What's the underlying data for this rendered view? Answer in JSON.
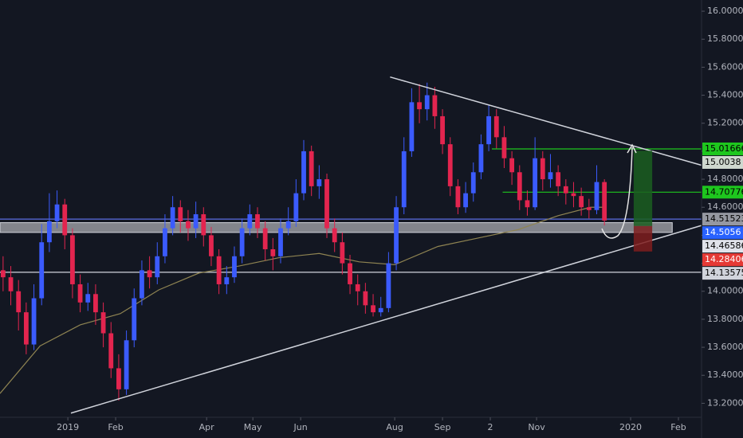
{
  "chart_data": {
    "type": "candlestick",
    "up_color": "#3b5bfd",
    "down_color": "#e3254f",
    "xlim": [
      -44,
      411
    ],
    "xticks": [
      {
        "value": 0,
        "label": "2019"
      },
      {
        "value": 31,
        "label": "Feb"
      },
      {
        "value": 90,
        "label": "Apr"
      },
      {
        "value": 120,
        "label": "May"
      },
      {
        "value": 151,
        "label": "Jun"
      },
      {
        "value": 212,
        "label": "Aug"
      },
      {
        "value": 243,
        "label": "Sep"
      },
      {
        "value": 274,
        "label": "2"
      },
      {
        "value": 304,
        "label": "Nov"
      },
      {
        "value": 365,
        "label": "2020"
      },
      {
        "value": 396,
        "label": "Feb"
      }
    ],
    "ylim": [
      13.1,
      16.08
    ],
    "yticks": [
      {
        "value": 13.2,
        "label": "13.20000"
      },
      {
        "value": 13.4,
        "label": "13.40000"
      },
      {
        "value": 13.6,
        "label": "13.60000"
      },
      {
        "value": 13.8,
        "label": "13.80000"
      },
      {
        "value": 14.0,
        "label": "14.00000"
      },
      {
        "value": 14.2,
        "label": "14.20000"
      },
      {
        "value": 14.4,
        "label": "14.40000"
      },
      {
        "value": 14.6,
        "label": "14.60000"
      },
      {
        "value": 14.8,
        "label": "14.80000"
      },
      {
        "value": 15.0,
        "label": "15.00000"
      },
      {
        "value": 15.2,
        "label": "15.20000"
      },
      {
        "value": 15.4,
        "label": "15.40000"
      },
      {
        "value": 15.6,
        "label": "15.60000"
      },
      {
        "value": 15.8,
        "label": "15.80000"
      },
      {
        "value": 16.0,
        "label": "16.00000"
      }
    ],
    "x": [
      -42,
      -37,
      -32,
      -27,
      -22,
      -17,
      -12,
      -7,
      -2,
      3,
      8,
      13,
      18,
      23,
      28,
      33,
      38,
      43,
      48,
      53,
      58,
      63,
      68,
      73,
      78,
      83,
      88,
      93,
      98,
      103,
      108,
      113,
      118,
      123,
      128,
      133,
      138,
      143,
      148,
      153,
      158,
      163,
      168,
      173,
      178,
      183,
      188,
      193,
      198,
      203,
      208,
      213,
      218,
      223,
      228,
      233,
      238,
      243,
      248,
      253,
      258,
      263,
      268,
      273,
      278,
      283,
      288,
      293,
      298,
      303,
      308,
      313,
      318,
      323,
      328,
      333,
      338,
      343,
      348
    ],
    "open": [
      14.15,
      14.1,
      14.0,
      13.85,
      13.62,
      13.95,
      14.35,
      14.5,
      14.62,
      14.4,
      14.05,
      13.92,
      13.98,
      13.85,
      13.7,
      13.45,
      13.3,
      13.65,
      13.95,
      14.15,
      14.1,
      14.25,
      14.45,
      14.6,
      14.5,
      14.45,
      14.55,
      14.4,
      14.25,
      14.05,
      14.1,
      14.25,
      14.45,
      14.55,
      14.45,
      14.3,
      14.25,
      14.45,
      14.5,
      14.7,
      15.0,
      14.75,
      14.8,
      14.45,
      14.35,
      14.2,
      14.05,
      14.0,
      13.9,
      13.85,
      13.88,
      14.2,
      14.6,
      15.0,
      15.35,
      15.3,
      15.4,
      15.25,
      15.05,
      14.75,
      14.6,
      14.7,
      14.85,
      15.05,
      15.25,
      15.1,
      14.95,
      14.85,
      14.65,
      14.6,
      14.95,
      14.8,
      14.85,
      14.75,
      14.7,
      14.68,
      14.6,
      14.58,
      14.78
    ],
    "high": [
      14.25,
      14.18,
      14.08,
      13.92,
      14.05,
      14.48,
      14.7,
      14.72,
      14.66,
      14.45,
      14.12,
      14.06,
      14.05,
      13.92,
      13.78,
      13.55,
      13.72,
      14.02,
      14.22,
      14.25,
      14.35,
      14.55,
      14.68,
      14.65,
      14.58,
      14.64,
      14.6,
      14.46,
      14.3,
      14.18,
      14.32,
      14.52,
      14.62,
      14.6,
      14.5,
      14.38,
      14.52,
      14.6,
      14.8,
      15.08,
      15.04,
      14.9,
      14.84,
      14.52,
      14.42,
      14.26,
      14.12,
      14.06,
      13.98,
      13.96,
      14.28,
      14.68,
      15.1,
      15.45,
      15.48,
      15.49,
      15.46,
      15.3,
      15.1,
      14.8,
      14.78,
      14.92,
      15.12,
      15.33,
      15.3,
      15.18,
      15.0,
      14.9,
      14.72,
      15.1,
      15.0,
      14.98,
      14.9,
      14.8,
      14.78,
      14.74,
      14.66,
      14.9,
      14.8
    ],
    "low": [
      14.0,
      13.9,
      13.72,
      13.55,
      13.58,
      13.9,
      14.28,
      14.45,
      14.3,
      13.95,
      13.85,
      13.86,
      13.76,
      13.6,
      13.38,
      13.22,
      13.26,
      13.6,
      13.9,
      14.02,
      14.05,
      14.2,
      14.4,
      14.42,
      14.36,
      14.38,
      14.32,
      14.18,
      13.98,
      13.98,
      14.06,
      14.2,
      14.4,
      14.38,
      14.22,
      14.15,
      14.2,
      14.4,
      14.46,
      14.65,
      14.68,
      14.66,
      14.38,
      14.28,
      14.12,
      13.98,
      13.9,
      13.84,
      13.82,
      13.82,
      13.85,
      14.15,
      14.55,
      14.96,
      15.2,
      15.22,
      15.16,
      14.98,
      14.68,
      14.55,
      14.56,
      14.64,
      14.8,
      15.0,
      15.02,
      14.88,
      14.76,
      14.58,
      14.54,
      14.58,
      14.72,
      14.74,
      14.68,
      14.62,
      14.6,
      14.54,
      14.52,
      14.55,
      14.47
    ],
    "close": [
      14.1,
      14.0,
      13.85,
      13.62,
      13.95,
      14.35,
      14.5,
      14.62,
      14.4,
      14.05,
      13.92,
      13.98,
      13.85,
      13.7,
      13.45,
      13.3,
      13.65,
      13.95,
      14.15,
      14.1,
      14.25,
      14.45,
      14.6,
      14.5,
      14.45,
      14.55,
      14.4,
      14.25,
      14.05,
      14.1,
      14.25,
      14.45,
      14.55,
      14.45,
      14.3,
      14.25,
      14.45,
      14.5,
      14.7,
      15.0,
      14.75,
      14.8,
      14.45,
      14.35,
      14.2,
      14.05,
      14.0,
      13.9,
      13.85,
      13.88,
      14.2,
      14.6,
      15.0,
      15.35,
      15.3,
      15.4,
      15.25,
      15.05,
      14.75,
      14.6,
      14.7,
      14.85,
      15.05,
      15.25,
      15.1,
      14.95,
      14.85,
      14.65,
      14.6,
      14.95,
      14.8,
      14.85,
      14.75,
      14.7,
      14.68,
      14.6,
      14.58,
      14.78,
      14.5056
    ],
    "last_price_badge": {
      "bg": "#2962ff",
      "fg": "#ffffff"
    },
    "ma": {
      "color": "#8f8452",
      "x": [
        -44,
        -18,
        8,
        34,
        59,
        85,
        111,
        137,
        163,
        189,
        212,
        240,
        266,
        292,
        318,
        339,
        349
      ],
      "values": [
        13.27,
        13.61,
        13.76,
        13.84,
        14.01,
        14.13,
        14.18,
        14.24,
        14.27,
        14.21,
        14.19,
        14.32,
        14.38,
        14.44,
        14.54,
        14.6,
        14.6
      ]
    },
    "zone": {
      "low": 14.42,
      "high": 14.49,
      "from": -44,
      "to": 392,
      "color": "#a9abb0"
    },
    "trendlines": [
      {
        "x": [
          209,
          411
        ],
        "y": [
          15.53,
          14.9
        ],
        "color": "#d1d4dc"
      },
      {
        "x": [
          2,
          411
        ],
        "y": [
          13.13,
          14.47
        ],
        "color": "#d1d4dc"
      }
    ],
    "levels": [
      {
        "value": 15.01666,
        "from": 275,
        "color": "#1ec71e",
        "bg": "#1ec71e",
        "fg": "#000000"
      },
      {
        "value": 14.70776,
        "from": 282,
        "color": "#1ec71e",
        "bg": "#1ec71e",
        "fg": "#000000"
      },
      {
        "value": 14.51523,
        "from": -44,
        "color": "#5b6ee1",
        "bg": "#9598a1",
        "fg": "#000000"
      },
      {
        "value": 14.13575,
        "from": -44,
        "color": "#d1d4dc",
        "bg": "#d1d4dc",
        "fg": "#000000"
      }
    ],
    "position": {
      "from": 367,
      "to": 379,
      "target": 15.0038,
      "entry": 14.46586,
      "stop": 14.28406,
      "target_bg": "#cfd8cf",
      "entry_bg": "#e0e3eb",
      "stop_bg": "#e53935",
      "fg": "#000000",
      "stop_fg": "#ffffff",
      "profit_color": "#1b5e20",
      "loss_color": "#7f1d1d"
    }
  }
}
